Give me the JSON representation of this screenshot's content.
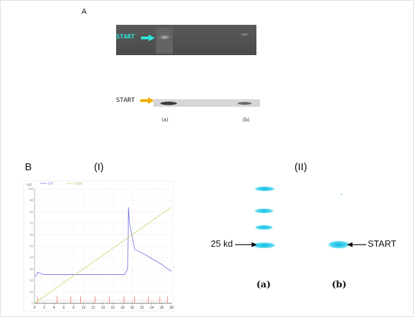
{
  "panels": {
    "a_letter": "A",
    "b_letter": "B",
    "roman_i": "(I)",
    "roman_ii": "(II)"
  },
  "gel_top": {
    "start_label": "START",
    "arrow_color": "#2ae6d9"
  },
  "gel_bottom": {
    "start_label": "START",
    "arrow_color": "#f0b000",
    "lane_a": "(a)",
    "lane_b": "(b)"
  },
  "western": {
    "marker_label": "25 kd",
    "start_label": "START",
    "lane_a": "(a)",
    "lane_b": "(b)",
    "band_color": "#1ec8e8"
  },
  "chart_data": {
    "type": "line",
    "ylabel_unit": "%B",
    "series": [
      {
        "name": "UV",
        "color": "#7a7ae0",
        "x": [
          0,
          0.4,
          0.6,
          2,
          10,
          15,
          18.4,
          19.05,
          19.2,
          19.5,
          20.5,
          22,
          24,
          26,
          27.2,
          28
        ],
        "y": [
          24,
          24,
          27,
          25,
          25,
          25,
          25,
          30,
          84,
          68,
          47,
          44,
          39,
          34,
          30,
          28
        ]
      },
      {
        "name": "Conc",
        "color": "#c8d870",
        "x": [
          0,
          28
        ],
        "y": [
          0,
          84
        ]
      }
    ],
    "xlim": [
      0,
      28
    ],
    "ylim": [
      0,
      100
    ],
    "xticks": [
      0,
      2,
      4,
      6,
      8,
      10,
      12,
      14,
      16,
      18,
      20,
      22,
      24,
      26,
      28
    ],
    "yticks": [
      0,
      10,
      20,
      30,
      40,
      50,
      60,
      70,
      80,
      90,
      100
    ],
    "fraction_markers_x": [
      0.6,
      4.6,
      7.4,
      9.4,
      12.4,
      15.3,
      18.3,
      20.4,
      23.3,
      25.6,
      27.2
    ]
  }
}
